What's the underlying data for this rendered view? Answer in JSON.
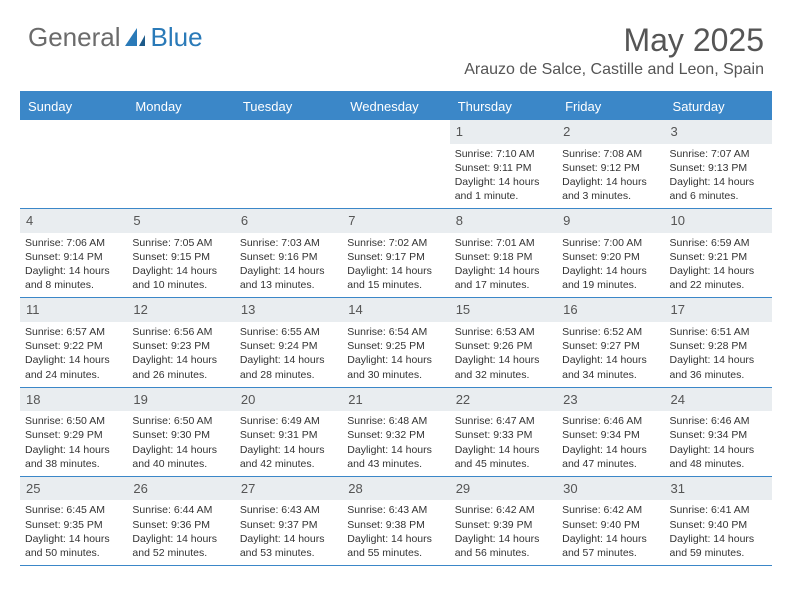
{
  "brand": {
    "part1": "General",
    "part2": "Blue"
  },
  "title": "May 2025",
  "location": "Arauzo de Salce, Castille and Leon, Spain",
  "colors": {
    "header_bg": "#3b87c8",
    "header_text": "#ffffff",
    "daynum_bg": "#e9edf0",
    "text": "#333333",
    "title_text": "#555555",
    "logo_gray": "#6b6b6b",
    "logo_blue": "#2a7ab8",
    "border": "#3b87c8"
  },
  "day_names": [
    "Sunday",
    "Monday",
    "Tuesday",
    "Wednesday",
    "Thursday",
    "Friday",
    "Saturday"
  ],
  "weeks": [
    [
      null,
      null,
      null,
      null,
      {
        "n": 1,
        "rise": "7:10 AM",
        "set": "9:11 PM",
        "dl": "14 hours and 1 minute."
      },
      {
        "n": 2,
        "rise": "7:08 AM",
        "set": "9:12 PM",
        "dl": "14 hours and 3 minutes."
      },
      {
        "n": 3,
        "rise": "7:07 AM",
        "set": "9:13 PM",
        "dl": "14 hours and 6 minutes."
      }
    ],
    [
      {
        "n": 4,
        "rise": "7:06 AM",
        "set": "9:14 PM",
        "dl": "14 hours and 8 minutes."
      },
      {
        "n": 5,
        "rise": "7:05 AM",
        "set": "9:15 PM",
        "dl": "14 hours and 10 minutes."
      },
      {
        "n": 6,
        "rise": "7:03 AM",
        "set": "9:16 PM",
        "dl": "14 hours and 13 minutes."
      },
      {
        "n": 7,
        "rise": "7:02 AM",
        "set": "9:17 PM",
        "dl": "14 hours and 15 minutes."
      },
      {
        "n": 8,
        "rise": "7:01 AM",
        "set": "9:18 PM",
        "dl": "14 hours and 17 minutes."
      },
      {
        "n": 9,
        "rise": "7:00 AM",
        "set": "9:20 PM",
        "dl": "14 hours and 19 minutes."
      },
      {
        "n": 10,
        "rise": "6:59 AM",
        "set": "9:21 PM",
        "dl": "14 hours and 22 minutes."
      }
    ],
    [
      {
        "n": 11,
        "rise": "6:57 AM",
        "set": "9:22 PM",
        "dl": "14 hours and 24 minutes."
      },
      {
        "n": 12,
        "rise": "6:56 AM",
        "set": "9:23 PM",
        "dl": "14 hours and 26 minutes."
      },
      {
        "n": 13,
        "rise": "6:55 AM",
        "set": "9:24 PM",
        "dl": "14 hours and 28 minutes."
      },
      {
        "n": 14,
        "rise": "6:54 AM",
        "set": "9:25 PM",
        "dl": "14 hours and 30 minutes."
      },
      {
        "n": 15,
        "rise": "6:53 AM",
        "set": "9:26 PM",
        "dl": "14 hours and 32 minutes."
      },
      {
        "n": 16,
        "rise": "6:52 AM",
        "set": "9:27 PM",
        "dl": "14 hours and 34 minutes."
      },
      {
        "n": 17,
        "rise": "6:51 AM",
        "set": "9:28 PM",
        "dl": "14 hours and 36 minutes."
      }
    ],
    [
      {
        "n": 18,
        "rise": "6:50 AM",
        "set": "9:29 PM",
        "dl": "14 hours and 38 minutes."
      },
      {
        "n": 19,
        "rise": "6:50 AM",
        "set": "9:30 PM",
        "dl": "14 hours and 40 minutes."
      },
      {
        "n": 20,
        "rise": "6:49 AM",
        "set": "9:31 PM",
        "dl": "14 hours and 42 minutes."
      },
      {
        "n": 21,
        "rise": "6:48 AM",
        "set": "9:32 PM",
        "dl": "14 hours and 43 minutes."
      },
      {
        "n": 22,
        "rise": "6:47 AM",
        "set": "9:33 PM",
        "dl": "14 hours and 45 minutes."
      },
      {
        "n": 23,
        "rise": "6:46 AM",
        "set": "9:34 PM",
        "dl": "14 hours and 47 minutes."
      },
      {
        "n": 24,
        "rise": "6:46 AM",
        "set": "9:34 PM",
        "dl": "14 hours and 48 minutes."
      }
    ],
    [
      {
        "n": 25,
        "rise": "6:45 AM",
        "set": "9:35 PM",
        "dl": "14 hours and 50 minutes."
      },
      {
        "n": 26,
        "rise": "6:44 AM",
        "set": "9:36 PM",
        "dl": "14 hours and 52 minutes."
      },
      {
        "n": 27,
        "rise": "6:43 AM",
        "set": "9:37 PM",
        "dl": "14 hours and 53 minutes."
      },
      {
        "n": 28,
        "rise": "6:43 AM",
        "set": "9:38 PM",
        "dl": "14 hours and 55 minutes."
      },
      {
        "n": 29,
        "rise": "6:42 AM",
        "set": "9:39 PM",
        "dl": "14 hours and 56 minutes."
      },
      {
        "n": 30,
        "rise": "6:42 AM",
        "set": "9:40 PM",
        "dl": "14 hours and 57 minutes."
      },
      {
        "n": 31,
        "rise": "6:41 AM",
        "set": "9:40 PM",
        "dl": "14 hours and 59 minutes."
      }
    ]
  ],
  "labels": {
    "sunrise": "Sunrise:",
    "sunset": "Sunset:",
    "daylight": "Daylight:"
  }
}
